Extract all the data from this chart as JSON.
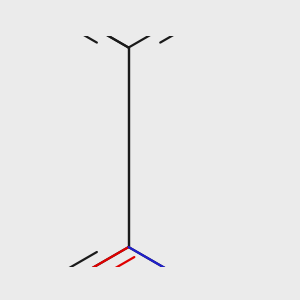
{
  "bg_color": "#ebebeb",
  "bond_color": "#1a1a1a",
  "o_color": "#e00000",
  "n_color": "#2020cc",
  "lw": 1.6,
  "dbo": 0.055,
  "figsize": [
    3.0,
    3.0
  ],
  "dpi": 100
}
